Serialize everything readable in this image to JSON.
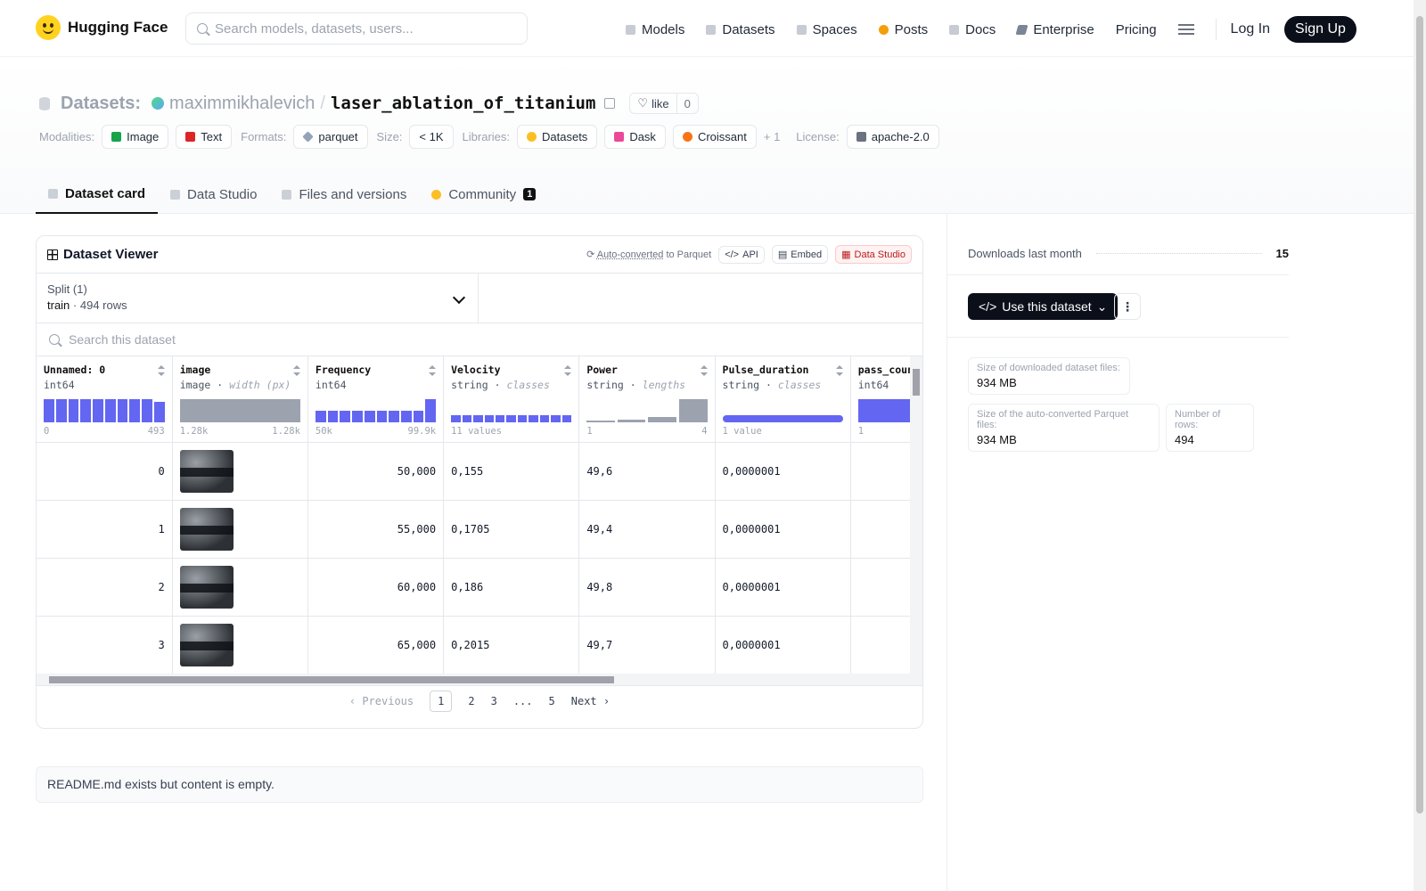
{
  "header": {
    "brand": "Hugging Face",
    "search_placeholder": "Search models, datasets, users...",
    "nav": [
      "Models",
      "Datasets",
      "Spaces",
      "Posts",
      "Docs",
      "Enterprise",
      "Pricing"
    ],
    "login": "Log In",
    "signup": "Sign Up"
  },
  "repo": {
    "section": "Datasets:",
    "owner": "maximmikhalevich",
    "slash": "/",
    "name": "laser_ablation_of_titanium",
    "like_label": "like",
    "like_count": "0"
  },
  "tags": {
    "modalities_label": "Modalities:",
    "modalities": [
      "Image",
      "Text"
    ],
    "formats_label": "Formats:",
    "format": "parquet",
    "size_label": "Size:",
    "size": "< 1K",
    "libraries_label": "Libraries:",
    "libraries": [
      "Datasets",
      "Dask",
      "Croissant"
    ],
    "libraries_more": "+ 1",
    "license_label": "License:",
    "license": "apache-2.0"
  },
  "tabs": [
    "Dataset card",
    "Data Studio",
    "Files and versions",
    "Community"
  ],
  "community_badge": "1",
  "viewer": {
    "title": "Dataset Viewer",
    "auto_converted": "Auto-converted",
    "to_parquet": "to Parquet",
    "api": "API",
    "embed": "Embed",
    "data_studio": "Data Studio",
    "split_label": "Split (1)",
    "split_name": "train",
    "split_rows": "494 rows",
    "search_placeholder": "Search this dataset",
    "columns": [
      {
        "name": "Unnamed: 0",
        "type": "int64",
        "sub": "",
        "min": "0",
        "max": "493"
      },
      {
        "name": "image",
        "type": "image",
        "sub": "width (px)",
        "min": "1.28k",
        "max": "1.28k"
      },
      {
        "name": "Frequency",
        "type": "int64",
        "sub": "",
        "min": "50k",
        "max": "99.9k"
      },
      {
        "name": "Velocity",
        "type": "string",
        "sub": "classes",
        "min": "11 values",
        "max": ""
      },
      {
        "name": "Power",
        "type": "string",
        "sub": "lengths",
        "min": "1",
        "max": "4"
      },
      {
        "name": "Pulse_duration",
        "type": "string",
        "sub": "classes",
        "min": "1 value",
        "max": ""
      },
      {
        "name": "pass_count",
        "type": "int64",
        "sub": "",
        "min": "1",
        "max": ""
      }
    ],
    "rows": [
      {
        "idx": "0",
        "freq": "50,000",
        "vel": "0,155",
        "power": "49,6",
        "pulse": "0,0000001"
      },
      {
        "idx": "1",
        "freq": "55,000",
        "vel": "0,1705",
        "power": "49,4",
        "pulse": "0,0000001"
      },
      {
        "idx": "2",
        "freq": "60,000",
        "vel": "0,186",
        "power": "49,8",
        "pulse": "0,0000001"
      },
      {
        "idx": "3",
        "freq": "65,000",
        "vel": "0,2015",
        "power": "49,7",
        "pulse": "0,0000001"
      }
    ],
    "pager": {
      "previous": "Previous",
      "pages": [
        "1",
        "2",
        "3",
        "...",
        "5"
      ],
      "next": "Next"
    }
  },
  "readme": "README.md exists but content is empty.",
  "sidebar": {
    "downloads_label": "Downloads last month",
    "downloads": "15",
    "use_dataset": "Use this dataset",
    "download_size_label": "Size of downloaded dataset files:",
    "download_size": "934 MB",
    "parquet_size_label": "Size of the auto-converted Parquet files:",
    "parquet_size": "934 MB",
    "rows_label": "Number of rows:",
    "rows": "494"
  }
}
